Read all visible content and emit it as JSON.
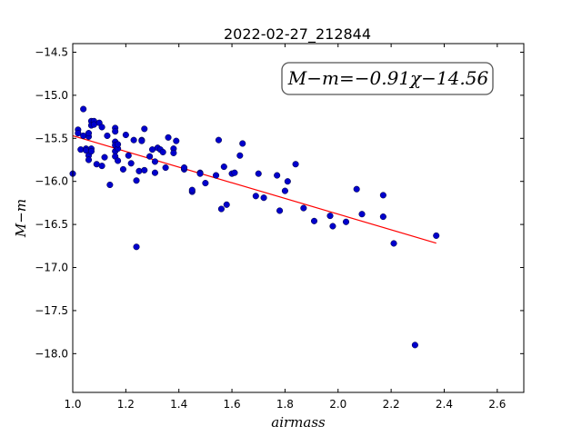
{
  "chart_data": {
    "type": "scatter",
    "title": "2022-02-27_212844",
    "xlabel": "airmass",
    "ylabel": "M−m",
    "xlim": [
      1.0,
      2.7
    ],
    "ylim": [
      -18.45,
      -14.4
    ],
    "y_inverted": true,
    "x_ticks": [
      1.0,
      1.2,
      1.4,
      1.6,
      1.8,
      2.0,
      2.2,
      2.4,
      2.6
    ],
    "x_tick_labels": [
      "1.0",
      "1.2",
      "1.4",
      "1.6",
      "1.8",
      "2.0",
      "2.2",
      "2.4",
      "2.6"
    ],
    "y_ticks": [
      -14.5,
      -15.0,
      -15.5,
      -16.0,
      -16.5,
      -17.0,
      -17.5,
      -18.0
    ],
    "y_tick_labels": [
      "−14.5",
      "−15.0",
      "−15.5",
      "−16.0",
      "−16.5",
      "−17.0",
      "−17.5",
      "−18.0"
    ],
    "grid": false,
    "annotation": "M−m=−0.91χ−14.56",
    "colors": {
      "points": "#0000cc",
      "fit": "#ff0000",
      "annotation_border": "#555555"
    },
    "fit_line": {
      "slope": -0.91,
      "intercept": -14.56,
      "x_range": [
        1.0,
        2.37
      ]
    },
    "points": [
      [
        1.0,
        -15.91
      ],
      [
        1.02,
        -15.4
      ],
      [
        1.02,
        -15.44
      ],
      [
        1.03,
        -15.63
      ],
      [
        1.04,
        -15.16
      ],
      [
        1.04,
        -15.47
      ],
      [
        1.05,
        -15.62
      ],
      [
        1.05,
        -15.64
      ],
      [
        1.06,
        -15.7
      ],
      [
        1.06,
        -15.75
      ],
      [
        1.06,
        -15.48
      ],
      [
        1.06,
        -15.44
      ],
      [
        1.07,
        -15.3
      ],
      [
        1.07,
        -15.35
      ],
      [
        1.07,
        -15.62
      ],
      [
        1.07,
        -15.65
      ],
      [
        1.08,
        -15.3
      ],
      [
        1.08,
        -15.34
      ],
      [
        1.09,
        -15.8
      ],
      [
        1.1,
        -15.32
      ],
      [
        1.11,
        -15.82
      ],
      [
        1.11,
        -15.37
      ],
      [
        1.12,
        -15.72
      ],
      [
        1.13,
        -15.47
      ],
      [
        1.14,
        -16.04
      ],
      [
        1.16,
        -15.38
      ],
      [
        1.16,
        -15.42
      ],
      [
        1.16,
        -15.54
      ],
      [
        1.16,
        -15.58
      ],
      [
        1.16,
        -15.65
      ],
      [
        1.16,
        -15.71
      ],
      [
        1.17,
        -15.76
      ],
      [
        1.17,
        -15.62
      ],
      [
        1.17,
        -15.57
      ],
      [
        1.19,
        -15.86
      ],
      [
        1.2,
        -15.46
      ],
      [
        1.21,
        -15.7
      ],
      [
        1.22,
        -15.79
      ],
      [
        1.23,
        -15.52
      ],
      [
        1.24,
        -15.99
      ],
      [
        1.24,
        -16.76
      ],
      [
        1.25,
        -15.88
      ],
      [
        1.26,
        -15.52
      ],
      [
        1.26,
        -15.53
      ],
      [
        1.27,
        -15.87
      ],
      [
        1.27,
        -15.39
      ],
      [
        1.29,
        -15.71
      ],
      [
        1.3,
        -15.63
      ],
      [
        1.31,
        -15.9
      ],
      [
        1.31,
        -15.77
      ],
      [
        1.32,
        -15.61
      ],
      [
        1.33,
        -15.63
      ],
      [
        1.34,
        -15.66
      ],
      [
        1.35,
        -15.84
      ],
      [
        1.36,
        -15.49
      ],
      [
        1.38,
        -15.62
      ],
      [
        1.38,
        -15.67
      ],
      [
        1.39,
        -15.53
      ],
      [
        1.42,
        -15.86
      ],
      [
        1.42,
        -15.84
      ],
      [
        1.45,
        -16.12
      ],
      [
        1.45,
        -16.1
      ],
      [
        1.48,
        -15.9
      ],
      [
        1.48,
        -15.91
      ],
      [
        1.5,
        -16.02
      ],
      [
        1.54,
        -15.93
      ],
      [
        1.55,
        -15.52
      ],
      [
        1.56,
        -16.32
      ],
      [
        1.57,
        -15.83
      ],
      [
        1.58,
        -16.27
      ],
      [
        1.6,
        -15.91
      ],
      [
        1.61,
        -15.9
      ],
      [
        1.63,
        -15.7
      ],
      [
        1.64,
        -15.56
      ],
      [
        1.69,
        -16.17
      ],
      [
        1.7,
        -15.91
      ],
      [
        1.72,
        -16.19
      ],
      [
        1.77,
        -15.93
      ],
      [
        1.78,
        -16.34
      ],
      [
        1.8,
        -16.11
      ],
      [
        1.81,
        -16.0
      ],
      [
        1.84,
        -15.8
      ],
      [
        1.87,
        -16.31
      ],
      [
        1.91,
        -16.46
      ],
      [
        1.97,
        -16.4
      ],
      [
        1.98,
        -16.52
      ],
      [
        2.03,
        -16.47
      ],
      [
        2.07,
        -16.09
      ],
      [
        2.09,
        -16.38
      ],
      [
        2.17,
        -16.16
      ],
      [
        2.17,
        -16.41
      ],
      [
        2.21,
        -16.72
      ],
      [
        2.29,
        -17.9
      ],
      [
        2.37,
        -16.63
      ]
    ]
  }
}
